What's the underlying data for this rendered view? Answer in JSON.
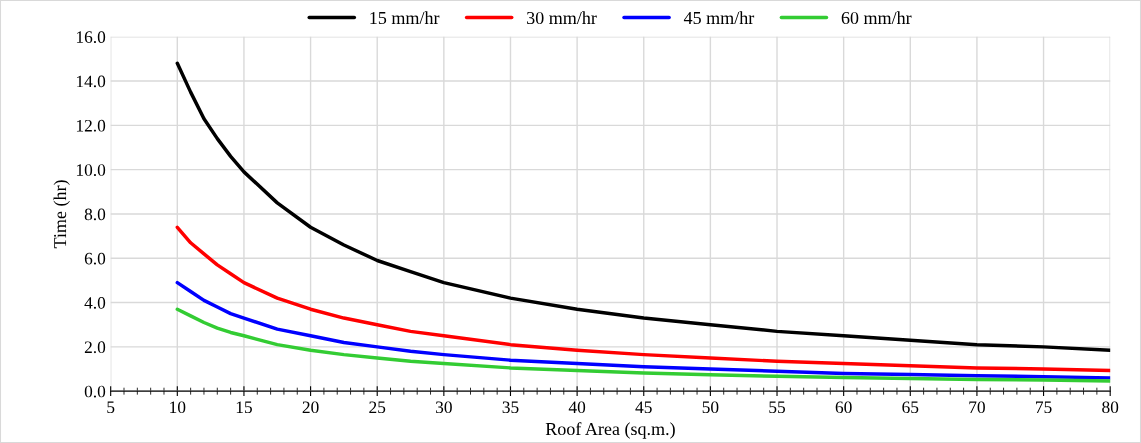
{
  "chart_data": {
    "type": "line",
    "xlabel": "Roof Area (sq.m.)",
    "ylabel": "Time (hr)",
    "x": [
      10,
      11,
      12,
      13,
      14,
      15,
      17.5,
      20,
      22.5,
      25,
      27.5,
      30,
      35,
      40,
      45,
      50,
      55,
      60,
      65,
      70,
      75,
      80
    ],
    "series": [
      {
        "name": "15 mm/hr",
        "color": "#000000",
        "values": [
          14.8,
          13.5,
          12.3,
          11.4,
          10.6,
          9.9,
          8.5,
          7.4,
          6.6,
          5.9,
          5.4,
          4.9,
          4.2,
          3.7,
          3.3,
          3.0,
          2.7,
          2.5,
          2.3,
          2.1,
          2.0,
          1.85
        ]
      },
      {
        "name": "30 mm/hr",
        "color": "#ff0000",
        "values": [
          7.4,
          6.7,
          6.2,
          5.7,
          5.3,
          4.9,
          4.2,
          3.7,
          3.3,
          3.0,
          2.7,
          2.5,
          2.1,
          1.85,
          1.65,
          1.5,
          1.35,
          1.25,
          1.15,
          1.05,
          1.0,
          0.93
        ]
      },
      {
        "name": "45 mm/hr",
        "color": "#0000ff",
        "values": [
          4.9,
          4.5,
          4.1,
          3.8,
          3.5,
          3.3,
          2.8,
          2.5,
          2.2,
          2.0,
          1.8,
          1.65,
          1.4,
          1.25,
          1.1,
          1.0,
          0.9,
          0.8,
          0.75,
          0.7,
          0.65,
          0.6
        ]
      },
      {
        "name": "60 mm/hr",
        "color": "#33cc33",
        "values": [
          3.7,
          3.4,
          3.1,
          2.85,
          2.65,
          2.5,
          2.1,
          1.85,
          1.65,
          1.5,
          1.35,
          1.25,
          1.05,
          0.93,
          0.82,
          0.74,
          0.67,
          0.62,
          0.57,
          0.53,
          0.5,
          0.46
        ]
      }
    ],
    "xlim": [
      5,
      80
    ],
    "xticks": [
      5,
      10,
      15,
      20,
      25,
      30,
      35,
      40,
      45,
      50,
      55,
      60,
      65,
      70,
      75,
      80
    ],
    "ylim": [
      0,
      16
    ],
    "yticks": [
      {
        "value": 0,
        "label": "0.0"
      },
      {
        "value": 2,
        "label": "2.0"
      },
      {
        "value": 4,
        "label": "4.0"
      },
      {
        "value": 6,
        "label": "6.0"
      },
      {
        "value": 8,
        "label": "8.0"
      },
      {
        "value": 10,
        "label": "10.0"
      },
      {
        "value": 12,
        "label": "12.0"
      },
      {
        "value": 14,
        "label": "14.0"
      },
      {
        "value": 16,
        "label": "16.0"
      }
    ],
    "grid": true,
    "legend": "top",
    "marker": "none",
    "line_style": "solid"
  }
}
